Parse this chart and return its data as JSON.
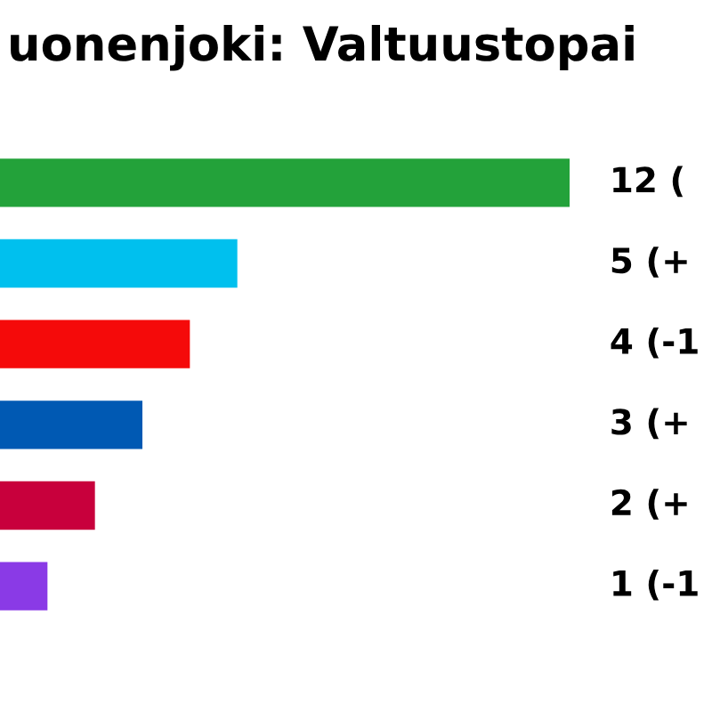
{
  "chart_data": {
    "type": "bar",
    "orientation": "horizontal",
    "title": "uonenjoki: Valtuustopai",
    "categories": [
      null,
      null,
      null,
      null,
      null,
      null
    ],
    "values": [
      12,
      5,
      4,
      3,
      2,
      1
    ],
    "colors": [
      "#23a23a",
      "#00c0ee",
      "#f50a0a",
      "#0059b3",
      "#c8003c",
      "#8a3ae6"
    ],
    "value_labels": [
      "12 (",
      "5 (+",
      "4 (-1",
      "3 (+",
      "2 (+",
      "1 (-1"
    ],
    "grid": false,
    "legend": false,
    "tick_labels": false
  }
}
